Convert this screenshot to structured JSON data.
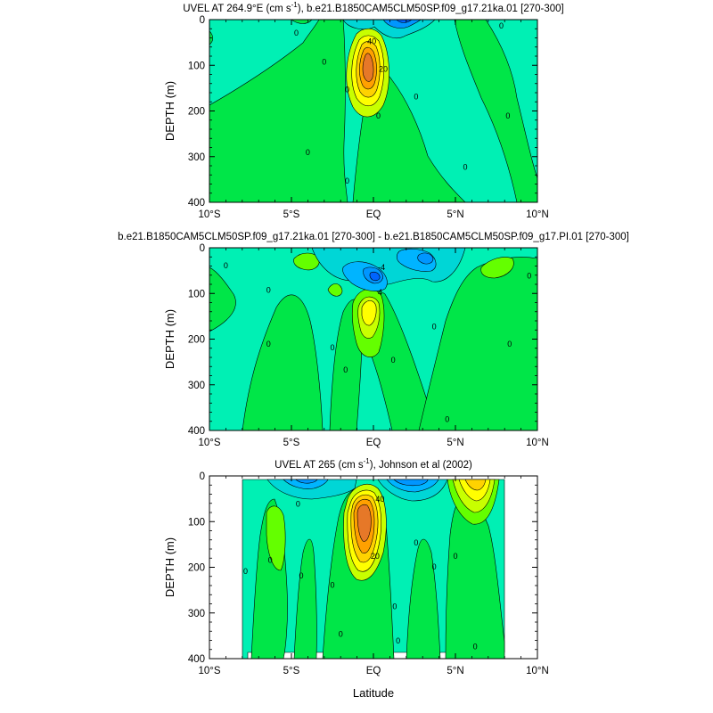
{
  "chart_data": [
    {
      "type": "contour",
      "title_parts": [
        "UVEL AT 264.9°E (cm s",
        "-1",
        "), b.e21.B1850CAM5CLM50SP.f09_g17.21ka.01 [270-300]"
      ],
      "xlabel": "",
      "ylabel": "DEPTH (m)",
      "xlim": [
        -10,
        10
      ],
      "ylim": [
        400,
        0
      ],
      "x_ticks": [
        -10,
        -5,
        0,
        5,
        10
      ],
      "x_tick_labels": [
        "10°S",
        "5°S",
        "EQ",
        "5°N",
        "10°N"
      ],
      "y_ticks": [
        0,
        100,
        200,
        300,
        400
      ],
      "y_tick_labels": [
        "0",
        "100",
        "200",
        "300",
        "400"
      ],
      "background_color": "#00f0b4",
      "contour_labels": [
        {
          "text": "40",
          "lat": -0.1,
          "depth": 47
        },
        {
          "text": "20",
          "lat": 0.6,
          "depth": 107
        },
        {
          "text": "0",
          "lat": -4.7,
          "depth": 28
        },
        {
          "text": "0",
          "lat": -3.0,
          "depth": 92
        },
        {
          "text": "0",
          "lat": -1.6,
          "depth": 152
        },
        {
          "text": "0",
          "lat": 0.3,
          "depth": 210
        },
        {
          "text": "0",
          "lat": 2.6,
          "depth": 168
        },
        {
          "text": "0",
          "lat": 8.2,
          "depth": 210
        },
        {
          "text": "0",
          "lat": -4.0,
          "depth": 290
        },
        {
          "text": "0",
          "lat": 5.6,
          "depth": 322
        },
        {
          "text": "0",
          "lat": -1.6,
          "depth": 352
        },
        {
          "text": "0",
          "lat": 7.8,
          "depth": 13
        }
      ]
    },
    {
      "type": "contour",
      "title_parts": [
        "b.e21.B1850CAM5CLM50SP.f09_g17.21ka.01 [270-300] - b.e21.B1850CAM5CLM50SP.f09_g17.PI.01 [270-300]"
      ],
      "xlabel": "",
      "ylabel": "DEPTH (m)",
      "xlim": [
        -10,
        10
      ],
      "ylim": [
        400,
        0
      ],
      "x_ticks": [
        -10,
        -5,
        0,
        5,
        10
      ],
      "x_tick_labels": [
        "10°S",
        "5°S",
        "EQ",
        "5°N",
        "10°N"
      ],
      "y_ticks": [
        0,
        100,
        200,
        300,
        400
      ],
      "y_tick_labels": [
        "0",
        "100",
        "200",
        "300",
        "400"
      ],
      "background_color": "#00f0b4",
      "contour_labels": [
        {
          "text": "-4",
          "lat": 0.5,
          "depth": 42
        },
        {
          "text": "4",
          "lat": 0.4,
          "depth": 97
        },
        {
          "text": "0",
          "lat": -9.0,
          "depth": 38
        },
        {
          "text": "0",
          "lat": -6.4,
          "depth": 92
        },
        {
          "text": "0",
          "lat": -6.4,
          "depth": 210
        },
        {
          "text": "0",
          "lat": -2.5,
          "depth": 218
        },
        {
          "text": "0",
          "lat": -1.7,
          "depth": 266
        },
        {
          "text": "0",
          "lat": 1.2,
          "depth": 245
        },
        {
          "text": "0",
          "lat": 3.7,
          "depth": 172
        },
        {
          "text": "0",
          "lat": 9.5,
          "depth": 60
        },
        {
          "text": "0",
          "lat": 8.3,
          "depth": 210
        },
        {
          "text": "0",
          "lat": 4.5,
          "depth": 375
        }
      ]
    },
    {
      "type": "contour",
      "title_parts": [
        "UVEL AT 265 (cm s",
        "-1",
        "), Johnson et al (2002)"
      ],
      "xlabel": "Latitude",
      "ylabel": "DEPTH (m)",
      "xlim": [
        -10,
        10
      ],
      "ylim": [
        400,
        0
      ],
      "x_ticks": [
        -10,
        -5,
        0,
        5,
        10
      ],
      "x_tick_labels": [
        "10°S",
        "5°S",
        "EQ",
        "5°N",
        "10°N"
      ],
      "y_ticks": [
        0,
        100,
        200,
        300,
        400
      ],
      "y_tick_labels": [
        "0",
        "100",
        "200",
        "300",
        "400"
      ],
      "data_lat_range": [
        -8,
        8
      ],
      "background_color": "#00f0b4",
      "contour_labels": [
        {
          "text": "40",
          "lat": 0.4,
          "depth": 50
        },
        {
          "text": "20",
          "lat": 0.1,
          "depth": 175
        },
        {
          "text": "0",
          "lat": -4.6,
          "depth": 60
        },
        {
          "text": "0",
          "lat": -6.3,
          "depth": 183
        },
        {
          "text": "0",
          "lat": -7.8,
          "depth": 208
        },
        {
          "text": "0",
          "lat": -4.4,
          "depth": 218
        },
        {
          "text": "0",
          "lat": -2.5,
          "depth": 238
        },
        {
          "text": "0",
          "lat": -2.0,
          "depth": 345
        },
        {
          "text": "0",
          "lat": 2.6,
          "depth": 145
        },
        {
          "text": "0",
          "lat": 3.7,
          "depth": 198
        },
        {
          "text": "0",
          "lat": 5.0,
          "depth": 175
        },
        {
          "text": "0",
          "lat": 1.3,
          "depth": 285
        },
        {
          "text": "0",
          "lat": 1.5,
          "depth": 360
        },
        {
          "text": "0",
          "lat": 6.2,
          "depth": 373
        }
      ]
    }
  ]
}
